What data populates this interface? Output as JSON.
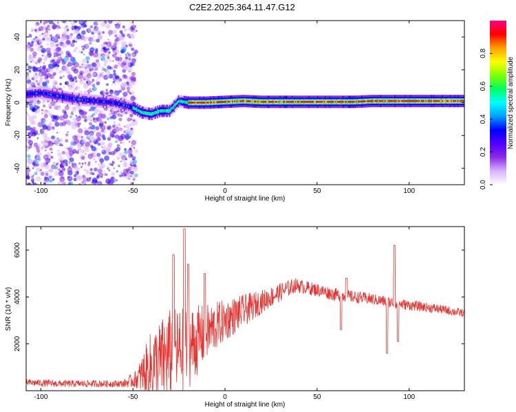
{
  "title": "C2E2.2025.364.11.47.G12",
  "chart_data": [
    {
      "type": "heatmap",
      "xlabel": "Height of straight line (km)",
      "ylabel": "Frequency (Hz)",
      "xlim": [
        -108,
        130
      ],
      "ylim": [
        -50,
        50
      ],
      "x_ticks": [
        -100,
        -50,
        0,
        50,
        100
      ],
      "y_ticks": [
        -40,
        -20,
        0,
        20,
        40
      ],
      "colorbar": {
        "label": "Normalized spectral amplitude",
        "range": [
          0.0,
          1.0
        ],
        "ticks": [
          "0.0",
          "0.2",
          "0.4",
          "0.6",
          "0.8"
        ],
        "tick_values": [
          0.0,
          0.2,
          0.4,
          0.6,
          0.8
        ],
        "colors": [
          "#ffffff",
          "#d8b4ff",
          "#8a2be2",
          "#5000ff",
          "#0000ff",
          "#00a0ff",
          "#00ffff",
          "#00ff60",
          "#80ff00",
          "#ffff00",
          "#ffa000",
          "#ff0000",
          "#ff0080"
        ]
      },
      "noise_region": {
        "x_range": [
          -108,
          -48
        ],
        "freq_range": [
          -50,
          50
        ]
      },
      "signal_track": [
        {
          "x": -108,
          "f": 5
        },
        {
          "x": -100,
          "f": 6
        },
        {
          "x": -90,
          "f": 4
        },
        {
          "x": -80,
          "f": 2
        },
        {
          "x": -70,
          "f": 1
        },
        {
          "x": -60,
          "f": 0
        },
        {
          "x": -50,
          "f": -3
        },
        {
          "x": -45,
          "f": -6
        },
        {
          "x": -40,
          "f": -7
        },
        {
          "x": -35,
          "f": -5
        },
        {
          "x": -30,
          "f": -5
        },
        {
          "x": -25,
          "f": 1
        },
        {
          "x": -20,
          "f": 0
        },
        {
          "x": -10,
          "f": 0
        },
        {
          "x": 0,
          "f": 0.5
        },
        {
          "x": 10,
          "f": 1
        },
        {
          "x": 20,
          "f": 0.5
        },
        {
          "x": 30,
          "f": 0.5
        },
        {
          "x": 40,
          "f": 0.5
        },
        {
          "x": 50,
          "f": 0.5
        },
        {
          "x": 60,
          "f": 0.5
        },
        {
          "x": 70,
          "f": 0.5
        },
        {
          "x": 80,
          "f": 1
        },
        {
          "x": 90,
          "f": 1
        },
        {
          "x": 100,
          "f": 1
        },
        {
          "x": 110,
          "f": 1
        },
        {
          "x": 120,
          "f": 1
        },
        {
          "x": 130,
          "f": 1
        }
      ]
    },
    {
      "type": "line",
      "xlabel": "Height of straight line (km)",
      "ylabel": "SNR (10 * v/v)",
      "xlim": [
        -108,
        130
      ],
      "ylim": [
        0,
        7000
      ],
      "x_ticks": [
        -100,
        -50,
        0,
        50,
        100
      ],
      "y_ticks": [
        2000,
        4000,
        6000
      ],
      "series": [
        {
          "name": "SNR",
          "color": "#e8322e",
          "baseline": [
            {
              "x": -108,
              "y": 350
            },
            {
              "x": -90,
              "y": 300
            },
            {
              "x": -70,
              "y": 300
            },
            {
              "x": -55,
              "y": 300
            },
            {
              "x": -48,
              "y": 500
            },
            {
              "x": -40,
              "y": 1000
            },
            {
              "x": -30,
              "y": 1500
            },
            {
              "x": -20,
              "y": 1800
            },
            {
              "x": -10,
              "y": 2500
            },
            {
              "x": 0,
              "y": 3000
            },
            {
              "x": 10,
              "y": 3400
            },
            {
              "x": 20,
              "y": 3800
            },
            {
              "x": 30,
              "y": 4200
            },
            {
              "x": 38,
              "y": 4500
            },
            {
              "x": 50,
              "y": 4300
            },
            {
              "x": 60,
              "y": 4100
            },
            {
              "x": 70,
              "y": 4000
            },
            {
              "x": 80,
              "y": 3900
            },
            {
              "x": 95,
              "y": 3700
            },
            {
              "x": 105,
              "y": 3600
            },
            {
              "x": 115,
              "y": 3500
            },
            {
              "x": 130,
              "y": 3300
            }
          ],
          "noise_amplitude": [
            {
              "x": -108,
              "y": 150
            },
            {
              "x": -55,
              "y": 150
            },
            {
              "x": -48,
              "y": 400
            },
            {
              "x": -40,
              "y": 1600
            },
            {
              "x": -30,
              "y": 2000
            },
            {
              "x": -20,
              "y": 1800
            },
            {
              "x": -10,
              "y": 1200
            },
            {
              "x": 0,
              "y": 900
            },
            {
              "x": 10,
              "y": 700
            },
            {
              "x": 20,
              "y": 500
            },
            {
              "x": 40,
              "y": 300
            },
            {
              "x": 80,
              "y": 250
            },
            {
              "x": 100,
              "y": 220
            },
            {
              "x": 130,
              "y": 180
            }
          ],
          "spikes": [
            {
              "x": -28,
              "y": 5800
            },
            {
              "x": -22,
              "y": 6900
            },
            {
              "x": -20,
              "y": 5400
            },
            {
              "x": -11,
              "y": 5000
            },
            {
              "x": 63,
              "y": 2600
            },
            {
              "x": 66,
              "y": 4800
            },
            {
              "x": 88,
              "y": 1600
            },
            {
              "x": 92,
              "y": 6200
            },
            {
              "x": 94,
              "y": 2100
            }
          ]
        }
      ]
    }
  ]
}
